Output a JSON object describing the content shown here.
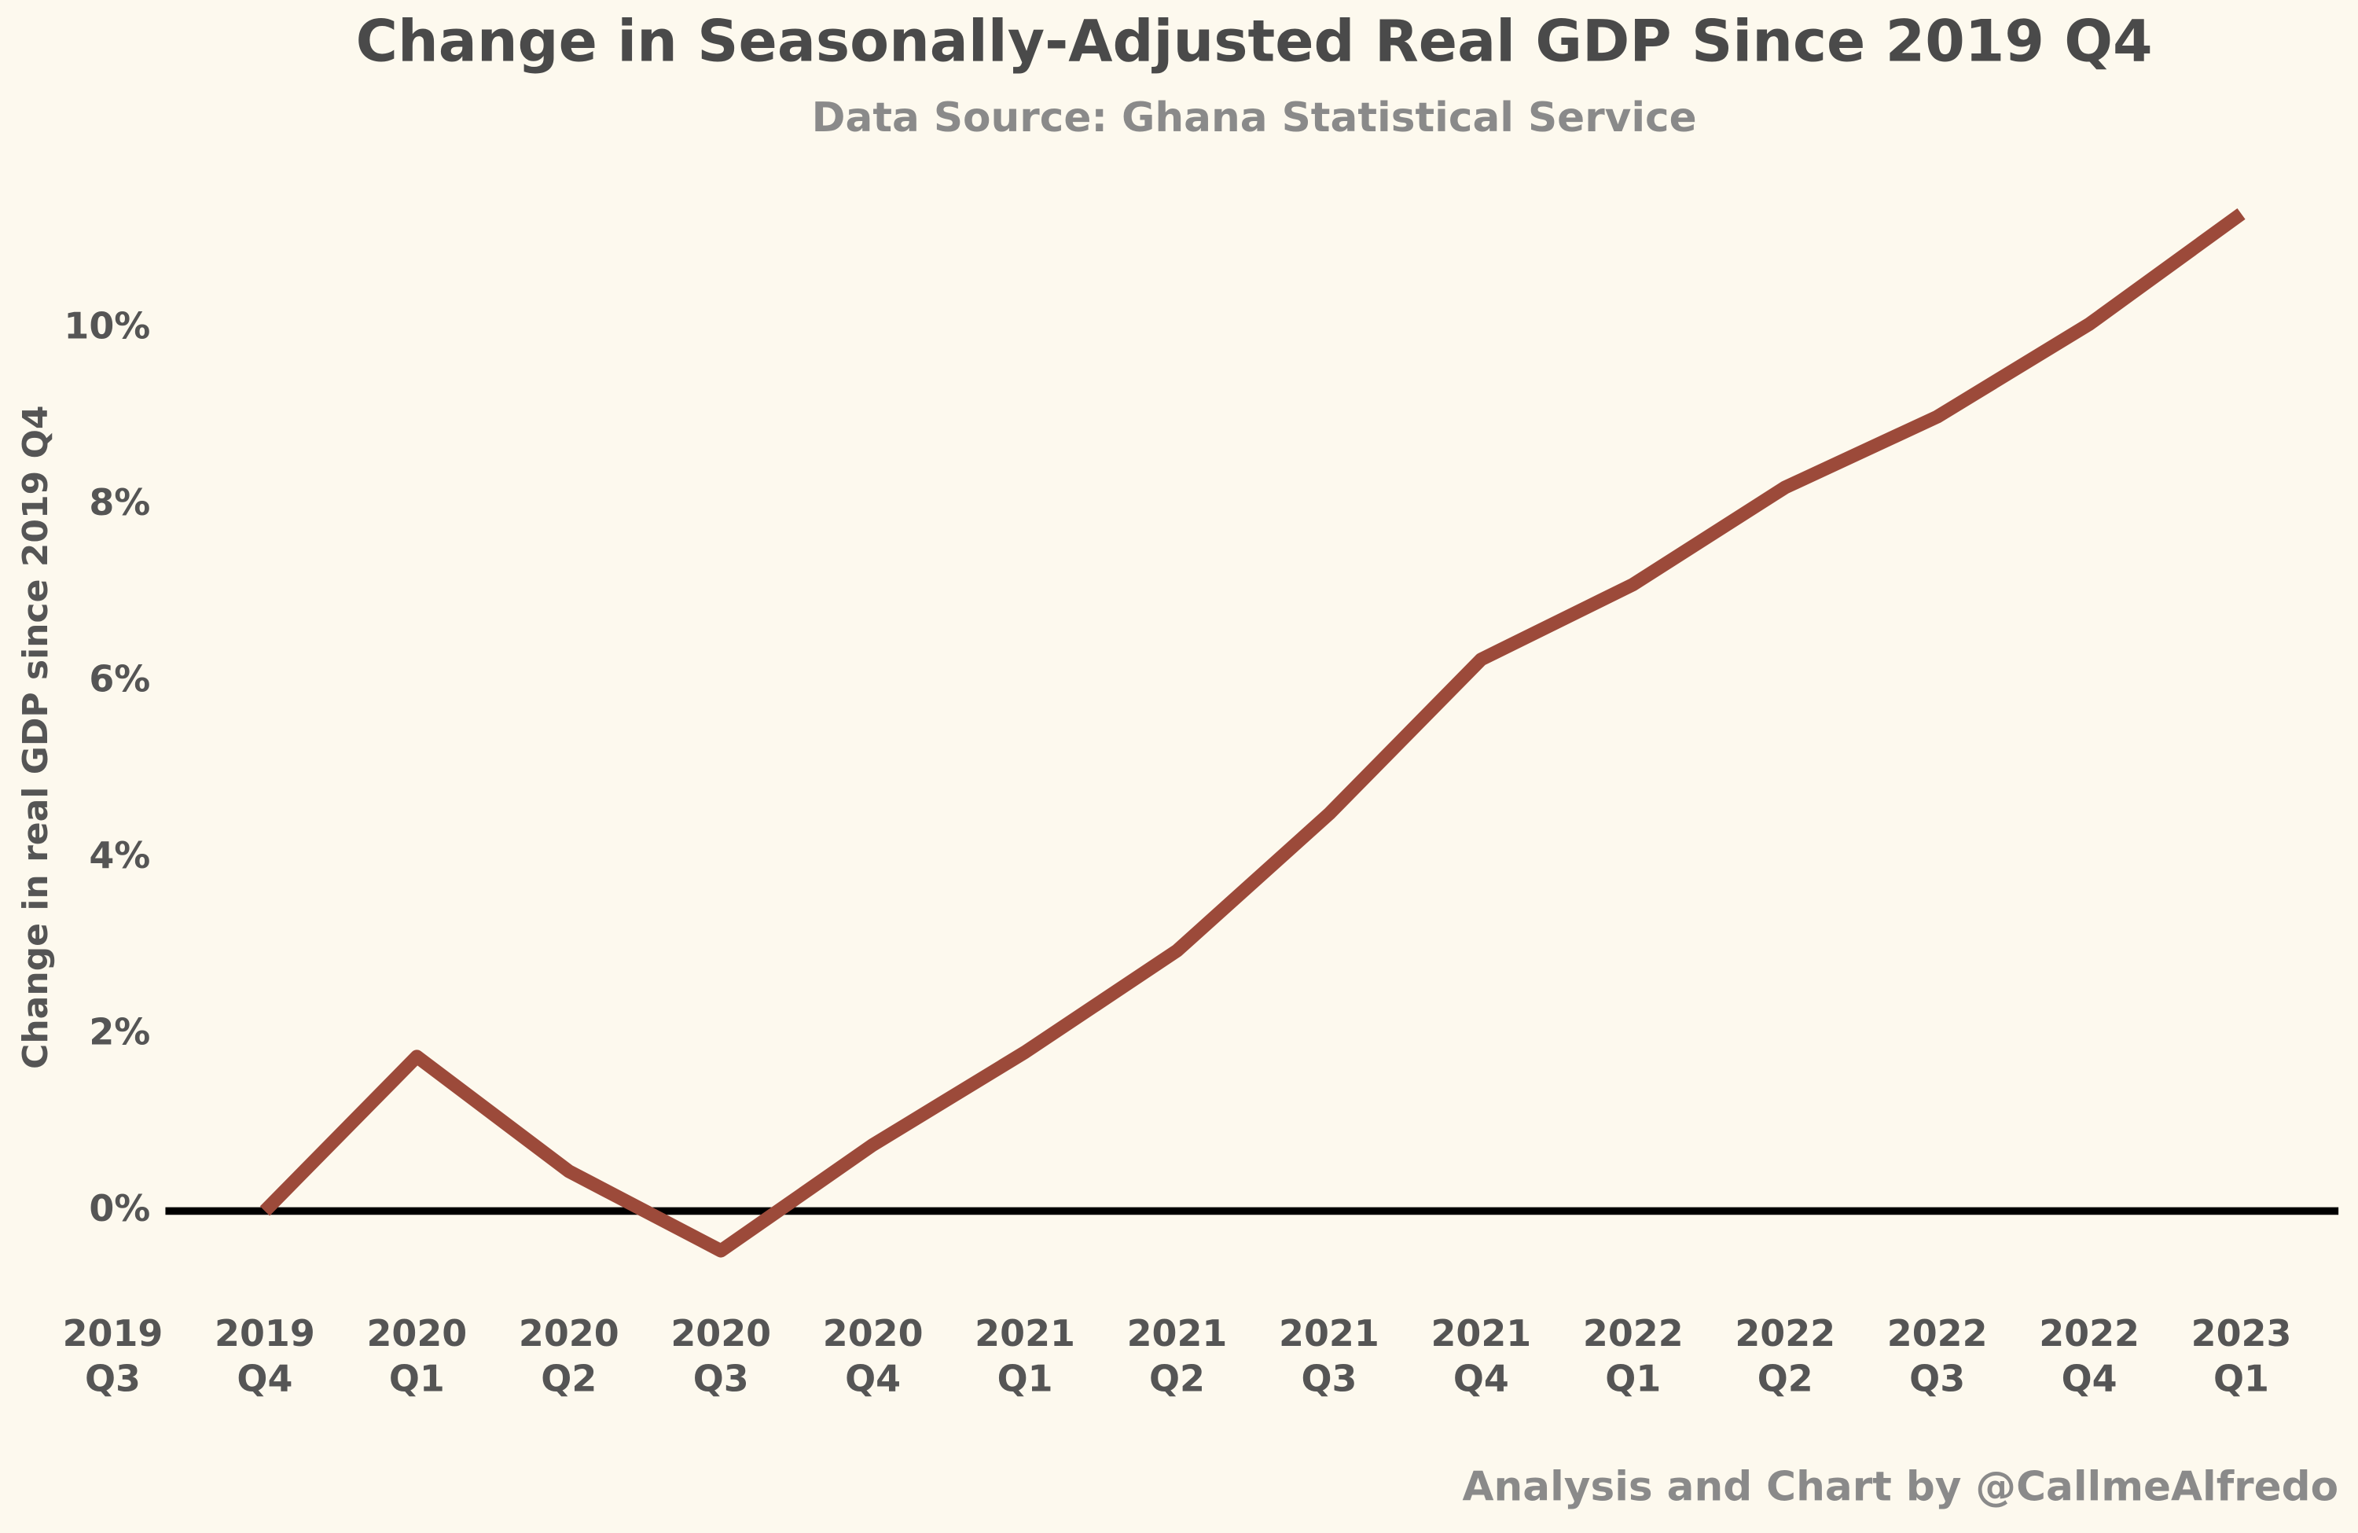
{
  "chart_data": {
    "type": "line",
    "title": "Change in Seasonally-Adjusted Real GDP Since 2019 Q4",
    "subtitle": "Data Source: Ghana Statistical Service",
    "y_label": "Change in real GDP since 2019 Q4",
    "footer": "Analysis and Chart by @CallmeAlfredo",
    "categories": [
      "2019 Q3",
      "2019 Q4",
      "2020 Q1",
      "2020 Q2",
      "2020 Q3",
      "2020 Q4",
      "2021 Q1",
      "2021 Q2",
      "2021 Q3",
      "2021 Q4",
      "2022 Q1",
      "2022 Q2",
      "2022 Q3",
      "2022 Q4",
      "2023 Q1"
    ],
    "series": [
      {
        "name": "Change in real GDP",
        "color": "#9c4a3a",
        "values": [
          null,
          0,
          1.75,
          0.45,
          -0.45,
          0.75,
          1.8,
          2.95,
          4.5,
          6.25,
          7.1,
          8.2,
          9.0,
          10.05,
          11.3
        ]
      }
    ],
    "ylim": [
      -1,
      11.5
    ],
    "yticks": [
      {
        "value": 0,
        "label": "0%"
      },
      {
        "value": 2,
        "label": "2%"
      },
      {
        "value": 4,
        "label": "4%"
      },
      {
        "value": 6,
        "label": "6%"
      },
      {
        "value": 8,
        "label": "8%"
      },
      {
        "value": 10,
        "label": "10%"
      }
    ],
    "zero_line": true,
    "grid": false
  }
}
